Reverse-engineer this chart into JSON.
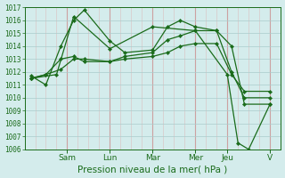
{
  "background_color": "#d4ecec",
  "grid_color_h": "#aacccc",
  "grid_color_v_minor": "#ddaaaa",
  "grid_color_v_major": "#cc9999",
  "line_color": "#1a6b1a",
  "text_color": "#1a6b1a",
  "xlabel": "Pression niveau de la mer( hPa )",
  "xlabel_fontsize": 7.5,
  "ylabel_fontsize": 5.5,
  "xlabel_tick_fontsize": 6.5,
  "ylim": [
    1006,
    1017
  ],
  "yticks": [
    1006,
    1007,
    1008,
    1009,
    1010,
    1011,
    1012,
    1013,
    1014,
    1015,
    1016,
    1017
  ],
  "x_day_labels": [
    "Sam",
    "Lun",
    "Mar",
    "Mer",
    "Jeu",
    "V"
  ],
  "x_day_positions": [
    2.0,
    4.0,
    6.0,
    8.0,
    9.5,
    11.5
  ],
  "xlim": [
    0,
    12.0
  ],
  "x_minor_ticks": 0.5,
  "lines": [
    {
      "x": [
        0.3,
        1.0,
        1.7,
        2.3,
        2.8,
        4.0,
        4.7,
        6.0,
        6.7,
        7.3,
        8.0,
        9.0,
        9.7,
        10.3,
        11.5
      ],
      "y": [
        1011.7,
        1011.0,
        1014.0,
        1016.0,
        1016.8,
        1014.4,
        1013.5,
        1013.7,
        1015.5,
        1016.0,
        1015.5,
        1015.2,
        1014.0,
        1009.5,
        1009.5
      ]
    },
    {
      "x": [
        0.3,
        1.0,
        1.7,
        2.3,
        2.8,
        4.0,
        4.7,
        6.0,
        6.7,
        7.3,
        8.0,
        9.0,
        9.7,
        10.3,
        11.5
      ],
      "y": [
        1011.5,
        1011.8,
        1013.0,
        1013.2,
        1012.8,
        1012.8,
        1013.2,
        1013.5,
        1014.5,
        1014.8,
        1015.2,
        1015.2,
        1012.0,
        1010.0,
        1010.0
      ]
    },
    {
      "x": [
        0.3,
        1.0,
        1.7,
        2.3,
        2.8,
        4.0,
        4.7,
        6.0,
        6.7,
        7.3,
        8.0,
        9.0,
        9.7,
        10.3,
        11.5
      ],
      "y": [
        1011.5,
        1011.8,
        1012.2,
        1013.0,
        1013.0,
        1012.8,
        1013.0,
        1013.2,
        1013.5,
        1014.0,
        1014.2,
        1014.2,
        1011.8,
        1010.5,
        1010.5
      ]
    },
    {
      "x": [
        0.3,
        1.5,
        2.3,
        4.0,
        6.0,
        8.0,
        9.5,
        10.0,
        10.5,
        11.5
      ],
      "y": [
        1011.5,
        1011.8,
        1016.3,
        1013.8,
        1015.5,
        1015.2,
        1011.8,
        1006.5,
        1006.0,
        1009.5
      ]
    }
  ]
}
